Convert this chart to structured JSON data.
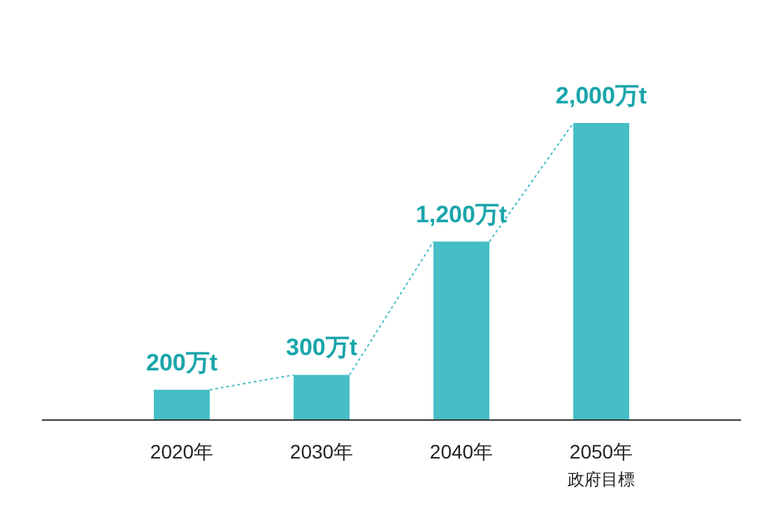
{
  "chart_data": {
    "type": "bar",
    "categories": [
      "2020年",
      "2030年",
      "2040年",
      "2050年政府目標"
    ],
    "values": [
      200,
      300,
      1200,
      2000
    ],
    "value_labels": [
      "200万t",
      "300万t",
      "1,200万t",
      "2,000万t"
    ],
    "color": "#45bec6"
  }
}
